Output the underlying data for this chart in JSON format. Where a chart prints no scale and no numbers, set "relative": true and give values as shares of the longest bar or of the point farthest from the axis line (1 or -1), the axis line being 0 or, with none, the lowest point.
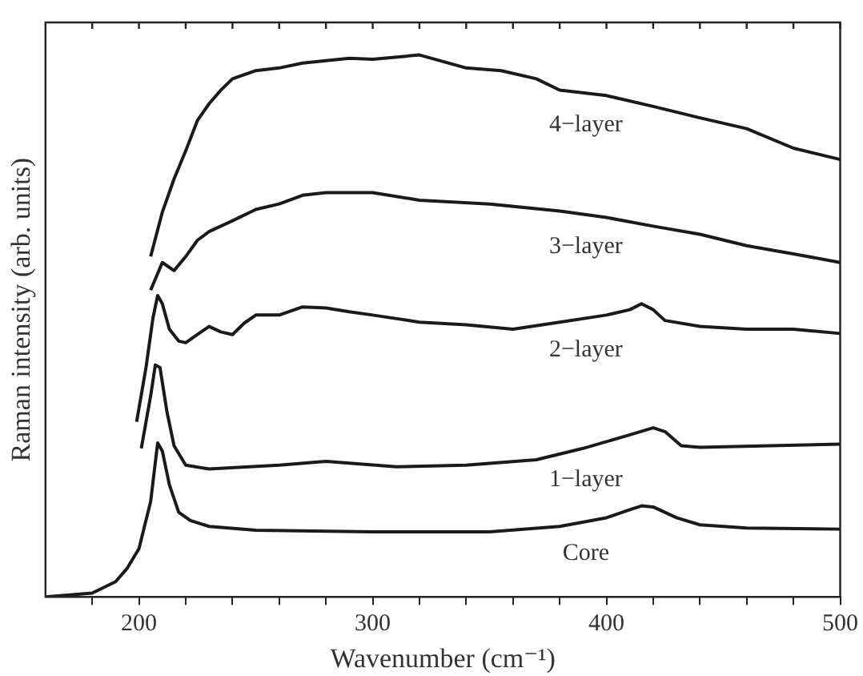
{
  "chart_data": {
    "type": "line",
    "relative": true,
    "xlabel": "Wavenumber (cm⁻¹)",
    "ylabel": "Raman intensity (arb. units)",
    "xlim": [
      160,
      500
    ],
    "xticks": [
      {
        "value": 180,
        "label": null
      },
      200,
      {
        "value": 220,
        "label": null
      },
      {
        "value": 240,
        "label": null
      },
      {
        "value": 260,
        "label": null
      },
      {
        "value": 280,
        "label": null
      },
      300,
      {
        "value": 320,
        "label": null
      },
      {
        "value": 340,
        "label": null
      },
      {
        "value": 360,
        "label": null
      },
      {
        "value": 380,
        "label": null
      },
      400,
      {
        "value": 420,
        "label": null
      },
      {
        "value": 440,
        "label": null
      },
      {
        "value": 460,
        "label": null
      },
      {
        "value": 480,
        "label": null
      },
      500
    ],
    "grid": false,
    "legend": false,
    "marker": "none",
    "line_style": "solid",
    "series": [
      {
        "name": "Core",
        "color": "#1a1a1a",
        "x": [
          160,
          180,
          190,
          195,
          200,
          205,
          208,
          210,
          213,
          217,
          222,
          230,
          250,
          300,
          350,
          380,
          400,
          410,
          415,
          420,
          430,
          440,
          460,
          500
        ],
        "values": [
          0,
          0.007,
          0.028,
          0.053,
          0.089,
          0.176,
          0.284,
          0.269,
          0.207,
          0.156,
          0.141,
          0.13,
          0.123,
          0.12,
          0.12,
          0.13,
          0.146,
          0.161,
          0.168,
          0.166,
          0.146,
          0.133,
          0.127,
          0.125
        ]
      },
      {
        "name": "1−layer",
        "color": "#1a1a1a",
        "x": [
          201,
          205,
          207,
          209,
          212,
          215,
          220,
          230,
          260,
          280,
          310,
          340,
          370,
          390,
          410,
          420,
          425,
          432,
          440,
          470,
          500
        ],
        "values": [
          0.274,
          0.371,
          0.428,
          0.423,
          0.341,
          0.279,
          0.243,
          0.236,
          0.243,
          0.25,
          0.24,
          0.243,
          0.253,
          0.274,
          0.299,
          0.312,
          0.305,
          0.279,
          0.276,
          0.279,
          0.282
        ]
      },
      {
        "name": "2−layer",
        "color": "#1a1a1a",
        "x": [
          199,
          203,
          206,
          208,
          210,
          213,
          217,
          220,
          225,
          230,
          235,
          240,
          245,
          250,
          260,
          270,
          280,
          290,
          300,
          320,
          340,
          360,
          380,
          400,
          410,
          415,
          420,
          425,
          440,
          460,
          480,
          500
        ],
        "values": [
          0.323,
          0.423,
          0.515,
          0.556,
          0.541,
          0.494,
          0.472,
          0.469,
          0.484,
          0.499,
          0.489,
          0.484,
          0.505,
          0.52,
          0.52,
          0.535,
          0.533,
          0.526,
          0.52,
          0.507,
          0.502,
          0.494,
          0.507,
          0.52,
          0.53,
          0.541,
          0.53,
          0.51,
          0.499,
          0.494,
          0.494,
          0.486
        ]
      },
      {
        "name": "3−layer",
        "color": "#1a1a1a",
        "x": [
          205,
          210,
          215,
          220,
          225,
          230,
          240,
          250,
          260,
          270,
          280,
          300,
          320,
          350,
          380,
          400,
          420,
          440,
          460,
          480,
          500
        ],
        "values": [
          0.566,
          0.617,
          0.602,
          0.628,
          0.658,
          0.674,
          0.694,
          0.715,
          0.725,
          0.741,
          0.746,
          0.746,
          0.732,
          0.725,
          0.712,
          0.7,
          0.684,
          0.669,
          0.648,
          0.633,
          0.617
        ]
      },
      {
        "name": "4−layer",
        "color": "#1a1a1a",
        "x": [
          205,
          210,
          215,
          220,
          225,
          230,
          235,
          240,
          250,
          260,
          270,
          290,
          300,
          320,
          340,
          355,
          370,
          380,
          400,
          420,
          440,
          460,
          480,
          500
        ],
        "values": [
          0.628,
          0.71,
          0.771,
          0.823,
          0.879,
          0.91,
          0.935,
          0.956,
          0.971,
          0.976,
          0.985,
          0.994,
          0.992,
          1,
          0.976,
          0.971,
          0.956,
          0.935,
          0.925,
          0.905,
          0.884,
          0.864,
          0.828,
          0.807
        ]
      }
    ]
  }
}
